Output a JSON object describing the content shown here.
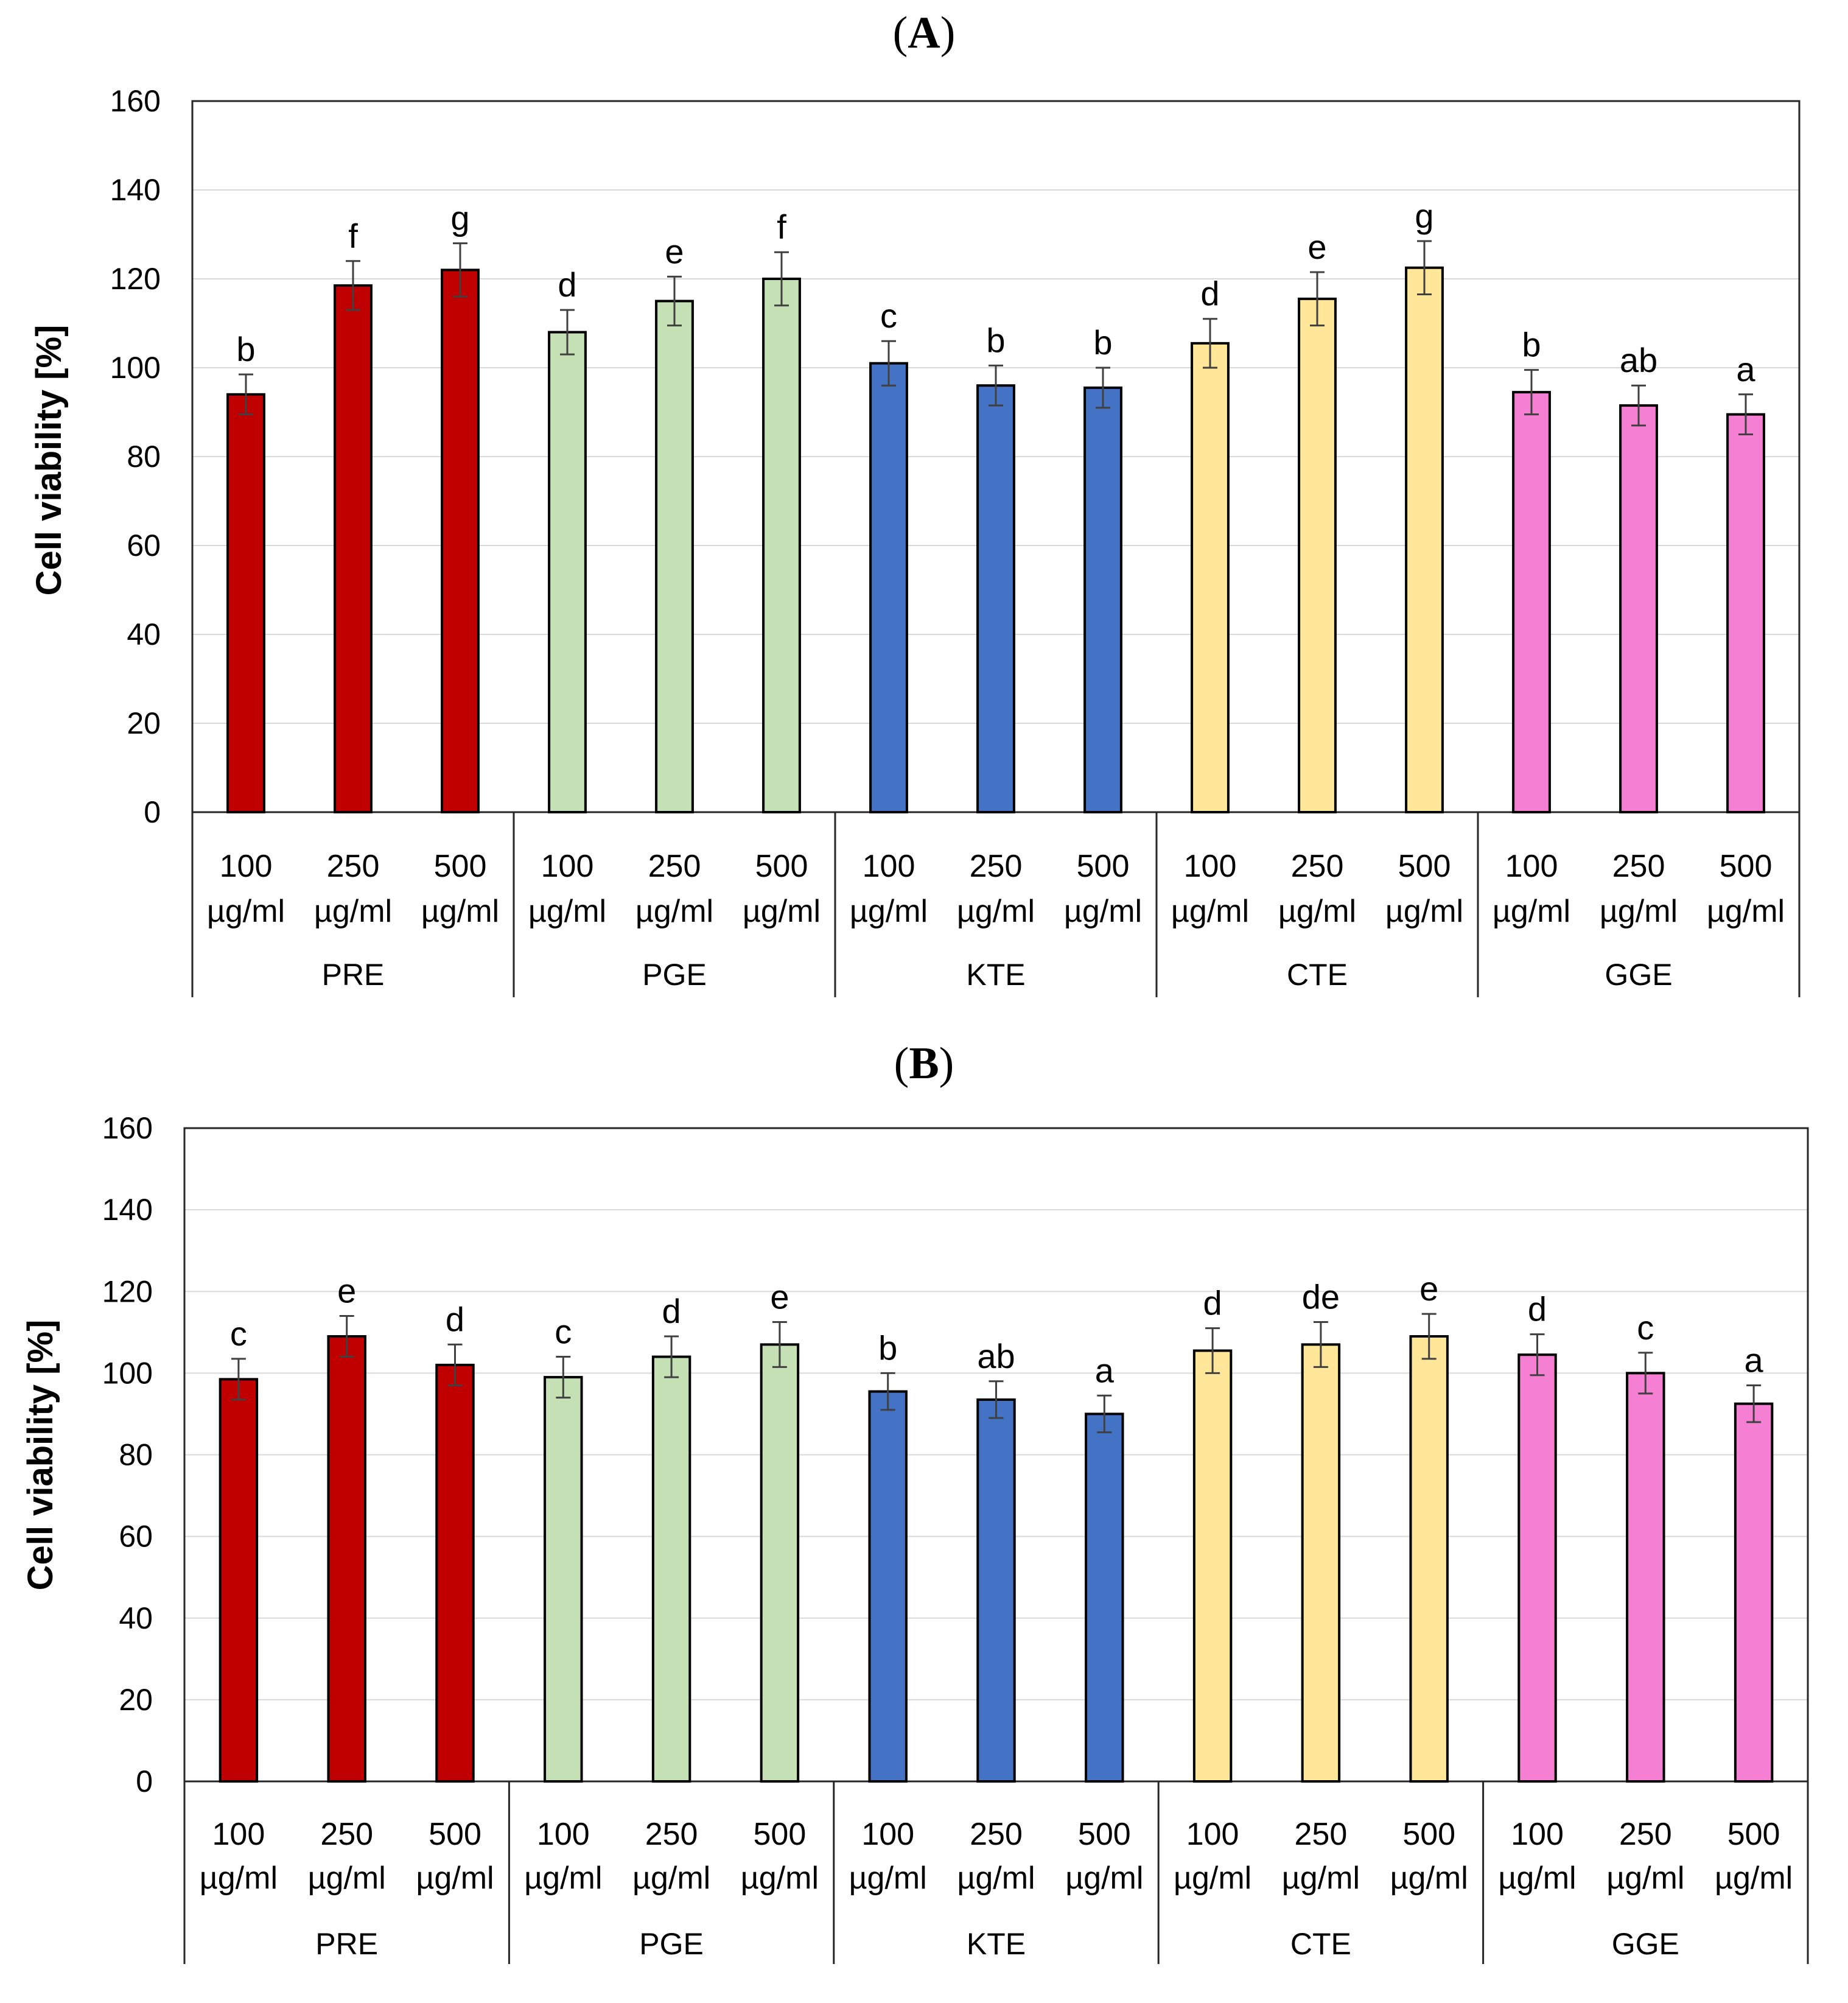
{
  "chart_data": [
    {
      "type": "bar",
      "panel_label": "A",
      "ylabel": "Cell viability [%]",
      "ylim": [
        0,
        160
      ],
      "yticks": [
        0,
        20,
        40,
        60,
        80,
        100,
        120,
        140,
        160
      ],
      "groups": [
        "PRE",
        "PGE",
        "KTE",
        "CTE",
        "GGE"
      ],
      "sub_categories": [
        [
          "100",
          "µg/ml"
        ],
        [
          "250",
          "µg/ml"
        ],
        [
          "500",
          "µg/ml"
        ]
      ],
      "colors": [
        "#c00000",
        "#c5e0b4",
        "#4472c4",
        "#ffe699",
        "#f47fd3"
      ],
      "values": [
        [
          94,
          118.5,
          122
        ],
        [
          108,
          115,
          120
        ],
        [
          101,
          96,
          95.5
        ],
        [
          105.5,
          115.5,
          122.5
        ],
        [
          94.5,
          91.5,
          89.5
        ]
      ],
      "errors": [
        [
          4.5,
          5.5,
          6
        ],
        [
          5,
          5.5,
          6
        ],
        [
          5,
          4.5,
          4.5
        ],
        [
          5.5,
          6,
          6
        ],
        [
          5,
          4.5,
          4.5
        ]
      ],
      "letters": [
        [
          "b",
          "f",
          "g"
        ],
        [
          "d",
          "e",
          "f"
        ],
        [
          "c",
          "b",
          "b"
        ],
        [
          "d",
          "e",
          "g"
        ],
        [
          "b",
          "ab",
          "a"
        ]
      ],
      "grid": true
    },
    {
      "type": "bar",
      "panel_label": "B",
      "ylabel": "Cell viability [%]",
      "ylim": [
        0,
        160
      ],
      "yticks": [
        0,
        20,
        40,
        60,
        80,
        100,
        120,
        140,
        160
      ],
      "groups": [
        "PRE",
        "PGE",
        "KTE",
        "CTE",
        "GGE"
      ],
      "sub_categories": [
        [
          "100",
          "µg/ml"
        ],
        [
          "250",
          "µg/ml"
        ],
        [
          "500",
          "µg/ml"
        ]
      ],
      "colors": [
        "#c00000",
        "#c5e0b4",
        "#4472c4",
        "#ffe699",
        "#f47fd3"
      ],
      "values": [
        [
          98.5,
          109,
          102
        ],
        [
          99,
          104,
          107
        ],
        [
          95.5,
          93.5,
          90
        ],
        [
          105.5,
          107,
          109
        ],
        [
          104.5,
          100,
          92.5
        ]
      ],
      "errors": [
        [
          5,
          5,
          5
        ],
        [
          5,
          5,
          5.5
        ],
        [
          4.5,
          4.5,
          4.5
        ],
        [
          5.5,
          5.5,
          5.5
        ],
        [
          5,
          5,
          4.5
        ]
      ],
      "letters": [
        [
          "c",
          "e",
          "d"
        ],
        [
          "c",
          "d",
          "e"
        ],
        [
          "b",
          "ab",
          "a"
        ],
        [
          "d",
          "de",
          "e"
        ],
        [
          "d",
          "c",
          "a"
        ]
      ],
      "grid": true
    }
  ]
}
